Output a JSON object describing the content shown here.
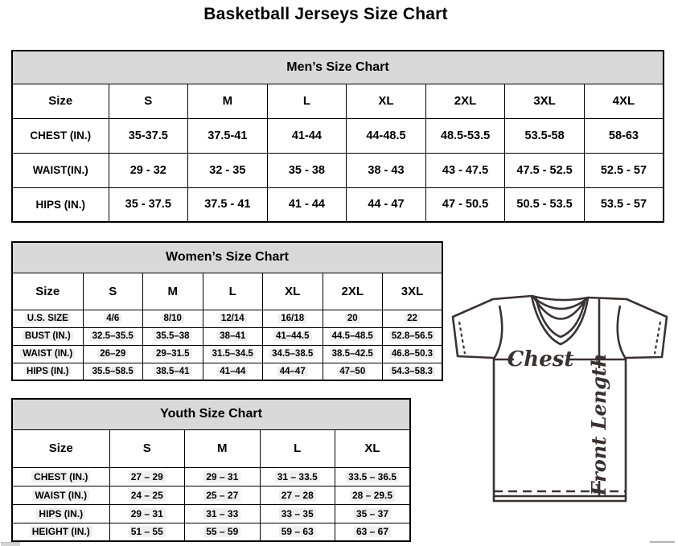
{
  "page": {
    "title": "Basketball Jerseys Size Chart"
  },
  "tables": {
    "men": {
      "title": "Men’s Size Chart",
      "size_label": "Size",
      "columns": [
        "S",
        "M",
        "L",
        "XL",
        "2XL",
        "3XL",
        "4XL"
      ],
      "rows": [
        {
          "label": "CHEST (IN.)",
          "values": [
            "35-37.5",
            "37.5-41",
            "41-44",
            "44-48.5",
            "48.5-53.5",
            "53.5-58",
            "58-63"
          ]
        },
        {
          "label": "WAIST(IN.)",
          "values": [
            "29 - 32",
            "32 - 35",
            "35 - 38",
            "38 - 43",
            "43 - 47.5",
            "47.5 - 52.5",
            "52.5 - 57"
          ]
        },
        {
          "label": "HIPS (IN.)",
          "values": [
            "35 - 37.5",
            "37.5 - 41",
            "41 - 44",
            "44 - 47",
            "47 - 50.5",
            "50.5 - 53.5",
            "53.5 - 57"
          ]
        }
      ]
    },
    "women": {
      "title": "Women’s Size Chart",
      "size_label": "Size",
      "columns": [
        "S",
        "M",
        "L",
        "XL",
        "2XL",
        "3XL"
      ],
      "rows": [
        {
          "label": "U.S. SIZE",
          "values": [
            "4/6",
            "8/10",
            "12/14",
            "16/18",
            "20",
            "22"
          ]
        },
        {
          "label": "BUST (IN.)",
          "values": [
            "32.5–35.5",
            "35.5–38",
            "38–41",
            "41–44.5",
            "44.5–48.5",
            "52.8–56.5"
          ]
        },
        {
          "label": "WAIST (IN.)",
          "values": [
            "26–29",
            "29–31.5",
            "31.5–34.5",
            "34.5–38.5",
            "38.5–42.5",
            "46.8–50.3"
          ]
        },
        {
          "label": "HIPS (IN.)",
          "values": [
            "35.5–58.5",
            "38.5–41",
            "41–44",
            "44–47",
            "47–50",
            "54.3–58.3"
          ]
        }
      ]
    },
    "youth": {
      "title": "Youth Size Chart",
      "size_label": "Size",
      "columns": [
        "S",
        "M",
        "L",
        "XL"
      ],
      "rows": [
        {
          "label": "CHEST (IN.)",
          "values": [
            "27 – 29",
            "29 – 31",
            "31 – 33.5",
            "33.5 – 36.5"
          ]
        },
        {
          "label": "WAIST (IN.)",
          "values": [
            "24 – 25",
            "25 – 27",
            "27 – 28",
            "28 – 29.5"
          ]
        },
        {
          "label": "HIPS (IN.)",
          "values": [
            "29 – 31",
            "31 – 33",
            "33 – 35",
            "35 – 37"
          ]
        },
        {
          "label": "HEIGHT (IN.)",
          "values": [
            "51 – 55",
            "55 – 59",
            "59 – 63",
            "63 – 67"
          ]
        }
      ]
    }
  },
  "diagram": {
    "chest_label": "Chest",
    "front_length_label": "Front Length"
  },
  "colors": {
    "band-gray": "#d9d9d9",
    "highlight-gray": "#efefef",
    "jersey-line": "#3a3132"
  }
}
